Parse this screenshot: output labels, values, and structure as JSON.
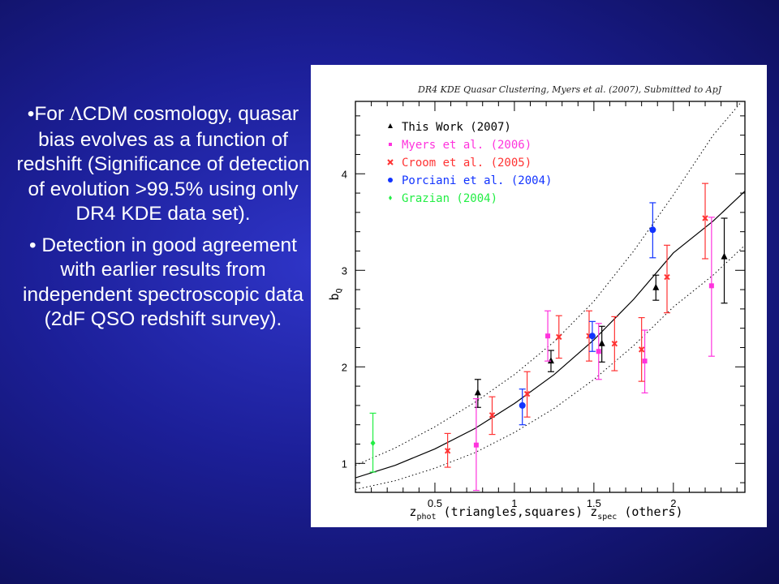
{
  "slide": {
    "bullet1": {
      "prefix": "•For ",
      "symbol": "Λ",
      "text": "CDM cosmology, quasar bias evolves as a function of redshift (Significance of detection of evolution >99.5% using only DR4 KDE data set)."
    },
    "bullet2": {
      "text": "• Detection in good agreement with earlier results from independent spectroscopic data (2dF QSO redshift survey)."
    }
  },
  "chart_data": {
    "type": "scatter",
    "title": "DR4 KDE Quasar Clustering, Myers et al. (2007), Submitted to ApJ",
    "xlabel": {
      "z1": "z",
      "s1": "phot",
      "mid": " (triangles,squares) ",
      "z2": "z",
      "s2": "spec",
      "end": " (others)"
    },
    "ylabel": {
      "b": "b",
      "sub": "Q"
    },
    "xlim": [
      0.0,
      2.45
    ],
    "ylim": [
      0.7,
      4.75
    ],
    "xticks": [
      "0.5",
      "1",
      "1.5",
      "2"
    ],
    "xtick_values": [
      0.5,
      1.0,
      1.5,
      2.0
    ],
    "yticks": [
      "1",
      "2",
      "3",
      "4"
    ],
    "ytick_values": [
      1,
      2,
      3,
      4
    ],
    "legend_position": "top-left",
    "colors": {
      "this_work": "#000000",
      "myers": "#ff33dd",
      "croom": "#ff3333",
      "porciani": "#1133ff",
      "grazian": "#22ee44",
      "curve": "#000000"
    },
    "series": [
      {
        "name": "This Work (2007)",
        "marker": "triangle",
        "color": "#000000",
        "points": [
          {
            "x": 0.77,
            "y": 1.73,
            "lo": 1.58,
            "hi": 1.87
          },
          {
            "x": 1.23,
            "y": 2.06,
            "lo": 1.95,
            "hi": 2.17
          },
          {
            "x": 1.55,
            "y": 2.24,
            "lo": 2.05,
            "hi": 2.42
          },
          {
            "x": 1.89,
            "y": 2.82,
            "lo": 2.69,
            "hi": 2.95
          },
          {
            "x": 2.32,
            "y": 3.14,
            "lo": 2.66,
            "hi": 3.54
          }
        ]
      },
      {
        "name": "Myers et al. (2006)",
        "marker": "square",
        "color": "#ff33dd",
        "points": [
          {
            "x": 0.76,
            "y": 1.19,
            "lo": 0.72,
            "hi": 1.67
          },
          {
            "x": 1.21,
            "y": 2.32,
            "lo": 2.06,
            "hi": 2.58
          },
          {
            "x": 1.53,
            "y": 2.16,
            "lo": 1.87,
            "hi": 2.45
          },
          {
            "x": 1.82,
            "y": 2.06,
            "lo": 1.73,
            "hi": 2.38
          },
          {
            "x": 2.24,
            "y": 2.84,
            "lo": 2.11,
            "hi": 3.55
          }
        ]
      },
      {
        "name": "Croom et al. (2005)",
        "marker": "cross",
        "color": "#ff3333",
        "points": [
          {
            "x": 0.58,
            "y": 1.13,
            "lo": 0.96,
            "hi": 1.31
          },
          {
            "x": 0.86,
            "y": 1.5,
            "lo": 1.3,
            "hi": 1.69
          },
          {
            "x": 1.08,
            "y": 1.72,
            "lo": 1.48,
            "hi": 1.95
          },
          {
            "x": 1.28,
            "y": 2.31,
            "lo": 2.09,
            "hi": 2.53
          },
          {
            "x": 1.47,
            "y": 2.32,
            "lo": 2.06,
            "hi": 2.58
          },
          {
            "x": 1.63,
            "y": 2.24,
            "lo": 1.96,
            "hi": 2.52
          },
          {
            "x": 1.8,
            "y": 2.18,
            "lo": 1.85,
            "hi": 2.51
          },
          {
            "x": 1.96,
            "y": 2.93,
            "lo": 2.56,
            "hi": 3.26
          },
          {
            "x": 2.2,
            "y": 3.54,
            "lo": 3.12,
            "hi": 3.9
          }
        ]
      },
      {
        "name": "Porciani et al. (2004)",
        "marker": "circle",
        "color": "#1133ff",
        "points": [
          {
            "x": 1.05,
            "y": 1.6,
            "lo": 1.4,
            "hi": 1.77
          },
          {
            "x": 1.49,
            "y": 2.32,
            "lo": 2.16,
            "hi": 2.47
          },
          {
            "x": 1.87,
            "y": 3.42,
            "lo": 3.13,
            "hi": 3.7
          }
        ]
      },
      {
        "name": "Grazian (2004)",
        "marker": "diamond",
        "color": "#22ee44",
        "points": [
          {
            "x": 0.11,
            "y": 1.21,
            "lo": 0.91,
            "hi": 1.52
          }
        ]
      }
    ],
    "curves": [
      {
        "style": "solid",
        "points": [
          [
            0.0,
            0.85
          ],
          [
            0.25,
            0.98
          ],
          [
            0.5,
            1.15
          ],
          [
            0.75,
            1.36
          ],
          [
            1.0,
            1.62
          ],
          [
            1.25,
            1.92
          ],
          [
            1.5,
            2.28
          ],
          [
            1.75,
            2.7
          ],
          [
            2.0,
            3.18
          ],
          [
            2.25,
            3.51
          ],
          [
            2.45,
            3.82
          ]
        ]
      },
      {
        "style": "dotted",
        "points": [
          [
            0.0,
            0.98
          ],
          [
            0.25,
            1.16
          ],
          [
            0.5,
            1.38
          ],
          [
            0.75,
            1.63
          ],
          [
            1.0,
            1.92
          ],
          [
            1.25,
            2.26
          ],
          [
            1.5,
            2.68
          ],
          [
            1.75,
            3.2
          ],
          [
            2.0,
            3.78
          ],
          [
            2.25,
            4.4
          ],
          [
            2.43,
            4.75
          ]
        ]
      },
      {
        "style": "dotted",
        "points": [
          [
            0.0,
            0.73
          ],
          [
            0.25,
            0.82
          ],
          [
            0.5,
            0.95
          ],
          [
            0.75,
            1.11
          ],
          [
            1.0,
            1.32
          ],
          [
            1.25,
            1.57
          ],
          [
            1.5,
            1.87
          ],
          [
            1.75,
            2.22
          ],
          [
            2.0,
            2.62
          ],
          [
            2.25,
            2.95
          ],
          [
            2.45,
            3.26
          ]
        ]
      }
    ]
  }
}
